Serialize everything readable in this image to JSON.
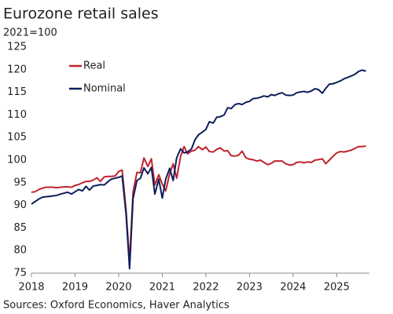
{
  "chart_data": {
    "type": "line",
    "title": "Eurozone retail sales",
    "subtitle": "2021=100",
    "source": "Sources: Oxford Economics, Haver Analytics",
    "legend": "upper left",
    "x": [
      2018.0,
      2018.08,
      2018.17,
      2018.25,
      2018.33,
      2018.42,
      2018.5,
      2018.58,
      2018.67,
      2018.75,
      2018.83,
      2018.92,
      2019.0,
      2019.08,
      2019.17,
      2019.25,
      2019.33,
      2019.42,
      2019.5,
      2019.58,
      2019.67,
      2019.75,
      2019.83,
      2019.92,
      2020.0,
      2020.08,
      2020.17,
      2020.25,
      2020.33,
      2020.42,
      2020.5,
      2020.58,
      2020.67,
      2020.75,
      2020.83,
      2020.92,
      2021.0,
      2021.08,
      2021.17,
      2021.25,
      2021.33,
      2021.42,
      2021.5,
      2021.58,
      2021.67,
      2021.75,
      2021.83,
      2021.92,
      2022.0,
      2022.08,
      2022.17,
      2022.25,
      2022.33,
      2022.42,
      2022.5,
      2022.58,
      2022.67,
      2022.75,
      2022.83,
      2022.92,
      2023.0,
      2023.08,
      2023.17,
      2023.25,
      2023.33,
      2023.42,
      2023.5,
      2023.58,
      2023.67,
      2023.75,
      2023.83,
      2023.92,
      2024.0,
      2024.08,
      2024.17,
      2024.25,
      2024.33,
      2024.42,
      2024.5,
      2024.58,
      2024.67,
      2024.75,
      2024.83,
      2024.92,
      2025.0,
      2025.08,
      2025.17,
      2025.25,
      2025.33,
      2025.42,
      2025.5,
      2025.58,
      2025.67
    ],
    "series": [
      {
        "name": "Real",
        "color": "#c0232f",
        "values": [
          92.9,
          93.0,
          93.5,
          93.8,
          94.0,
          94.0,
          94.0,
          93.9,
          94.0,
          94.1,
          94.1,
          94.0,
          94.4,
          94.6,
          95.0,
          95.3,
          95.3,
          95.6,
          96.1,
          95.3,
          96.3,
          96.4,
          96.4,
          96.5,
          97.5,
          97.8,
          89.0,
          77.5,
          93.0,
          97.3,
          97.2,
          100.5,
          98.6,
          100.3,
          94.5,
          96.8,
          94.7,
          93.2,
          97.0,
          99.2,
          96.0,
          100.8,
          103.0,
          101.4,
          102.0,
          102.2,
          103.0,
          102.3,
          102.9,
          101.9,
          101.8,
          102.4,
          102.7,
          102.0,
          102.1,
          101.0,
          100.9,
          101.1,
          102.0,
          100.5,
          100.2,
          100.1,
          99.8,
          100.0,
          99.5,
          99.0,
          99.3,
          99.8,
          99.8,
          99.8,
          99.2,
          98.9,
          99.0,
          99.5,
          99.6,
          99.4,
          99.6,
          99.5,
          100.0,
          100.1,
          100.3,
          99.2,
          100.0,
          100.9,
          101.6,
          101.9,
          101.8,
          102.0,
          102.2,
          102.6,
          103.0,
          103.0,
          103.1
        ]
      },
      {
        "name": "Nominal",
        "color": "#0d1f5c",
        "values": [
          90.3,
          90.8,
          91.4,
          91.8,
          91.9,
          92.0,
          92.1,
          92.2,
          92.5,
          92.7,
          92.9,
          92.5,
          93.0,
          93.5,
          93.2,
          94.2,
          93.4,
          94.3,
          94.4,
          94.6,
          94.5,
          95.2,
          95.8,
          96.0,
          96.2,
          96.5,
          88.0,
          76.0,
          91.5,
          95.5,
          96.0,
          98.3,
          97.0,
          98.4,
          92.5,
          95.8,
          91.6,
          95.8,
          98.2,
          95.5,
          100.5,
          102.5,
          101.6,
          101.8,
          102.5,
          104.5,
          105.6,
          106.2,
          106.8,
          108.5,
          108.2,
          109.5,
          109.6,
          110.0,
          111.6,
          111.4,
          112.3,
          112.5,
          112.3,
          112.8,
          113.0,
          113.6,
          113.7,
          113.9,
          114.2,
          114.0,
          114.5,
          114.3,
          114.7,
          114.9,
          114.4,
          114.3,
          114.4,
          114.9,
          115.1,
          115.2,
          115.0,
          115.3,
          115.8,
          115.6,
          114.8,
          115.9,
          116.8,
          116.9,
          117.2,
          117.5,
          118.0,
          118.3,
          118.6,
          119.0,
          119.6,
          119.9,
          119.7
        ]
      }
    ],
    "xlim": [
      2018,
      2025.75
    ],
    "xticks": [
      2018,
      2019,
      2020,
      2021,
      2022,
      2023,
      2024,
      2025
    ],
    "ylim": [
      75,
      125
    ],
    "yticks": [
      75,
      80,
      85,
      90,
      95,
      100,
      105,
      110,
      115,
      120,
      125
    ],
    "grid": false
  }
}
